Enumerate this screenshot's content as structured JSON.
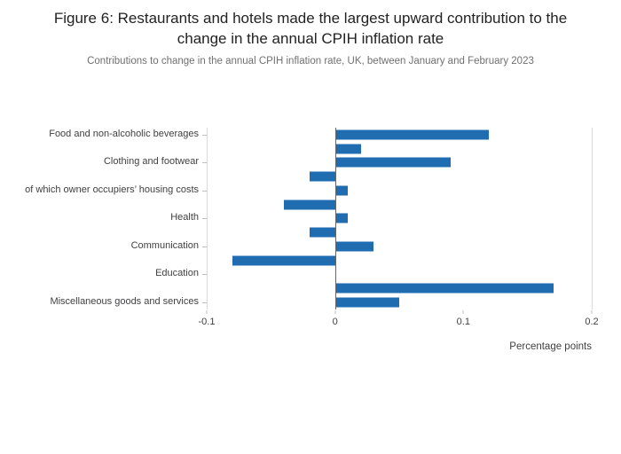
{
  "chart_data": {
    "type": "bar",
    "orientation": "horizontal",
    "title": "Figure 6: Restaurants and hotels made the largest upward contribution to the change in the annual CPIH inflation rate",
    "subtitle": "Contributions to change in the annual CPIH inflation rate, UK, between January and February 2023",
    "categories": [
      "Food and non-alcoholic beverages",
      "",
      "Clothing and footwear",
      "",
      "of which owner occupiers’ housing costs",
      "",
      "Health",
      "",
      "Communication",
      "",
      "Education",
      "",
      "Miscellaneous goods and services"
    ],
    "values": [
      0.12,
      0.02,
      0.09,
      -0.02,
      0.01,
      -0.04,
      0.01,
      -0.02,
      0.03,
      -0.08,
      0,
      0.17,
      0.05
    ],
    "xlabel": "Percentage points",
    "ylabel": "",
    "xlim": [
      -0.1,
      0.2
    ],
    "xtick_labels": [
      "-0.1",
      "0",
      "0.1",
      "0.2"
    ],
    "xtick_values": [
      -0.1,
      0,
      0.1,
      0.2
    ],
    "legend": "none",
    "grid": false,
    "colors": {
      "bar": "#1f6cb0",
      "zero_line": "#666666",
      "axis_edge_line": "#d9d9d9",
      "tick": "#bfbfbf",
      "title_text": "#222222",
      "subtitle_text": "#707071",
      "axis_text": "#414042"
    }
  }
}
